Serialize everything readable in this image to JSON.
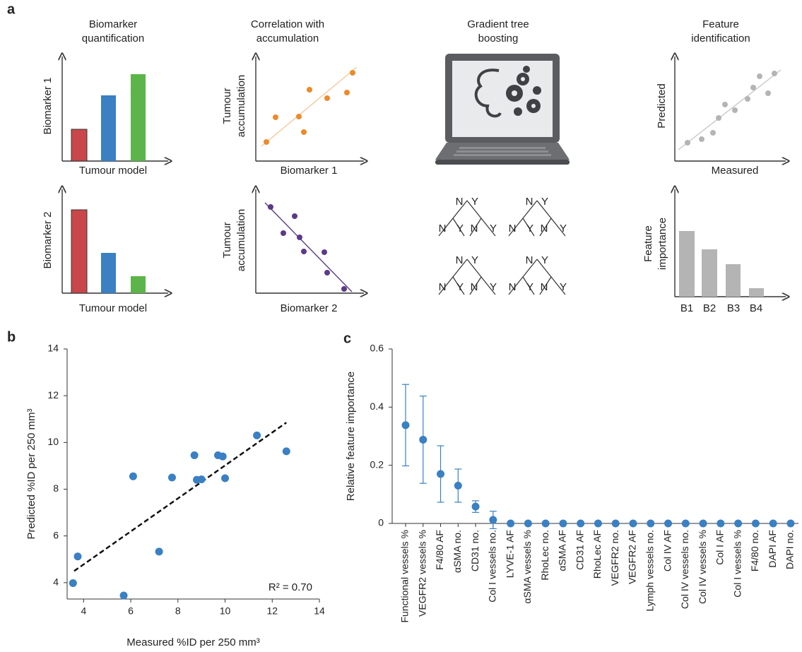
{
  "panel_labels": [
    "a",
    "b",
    "c"
  ],
  "panel_a": {
    "titles": [
      [
        "Biomarker",
        "quantification"
      ],
      [
        "Correlation with",
        "accumulation"
      ],
      [
        "Gradient tree",
        "boosting"
      ],
      [
        "Feature",
        "identification"
      ]
    ],
    "bar_rows": [
      {
        "y_label": "Biomarker 1",
        "x_label": "Tumour model"
      },
      {
        "y_label": "Biomarker 2",
        "x_label": "Tumour model"
      }
    ],
    "scatter_rows": [
      {
        "y_label": [
          "Tumour",
          "accumulation"
        ],
        "x_label": "Biomarker 1"
      },
      {
        "y_label": [
          "Tumour",
          "accumulation"
        ],
        "x_label": "Biomarker 2"
      }
    ],
    "trees": [
      [
        "N",
        "Y",
        "N",
        "Y",
        "N",
        "Y"
      ],
      [
        "N",
        "Y",
        "N",
        "Y",
        "N",
        "Y"
      ],
      [
        "N",
        "Y",
        "N",
        "Y",
        "N",
        "Y"
      ],
      [
        "N",
        "Y",
        "N",
        "Y",
        "N",
        "Y"
      ]
    ],
    "identification": {
      "y_label": "Predicted",
      "x_label": "Measured"
    },
    "importance": {
      "y_label": [
        "Feature",
        "importance"
      ],
      "categories": [
        "B1",
        "B2",
        "B3",
        "B4"
      ]
    }
  },
  "chart_data": [
    {
      "type": "scatter",
      "x_label": "Measured %ID per 250 mm³",
      "y_label": "Predicted %ID per 250 mm³",
      "x": [
        3.55,
        3.75,
        5.7,
        6.1,
        7.2,
        7.75,
        8.7,
        8.8,
        9.0,
        9.7,
        9.9,
        10.0,
        11.35,
        12.6
      ],
      "values": [
        3.98,
        5.12,
        3.45,
        8.55,
        5.33,
        8.5,
        9.45,
        8.4,
        8.42,
        9.45,
        9.4,
        8.47,
        10.3,
        9.62
      ],
      "color": "#3a80c3",
      "trendline": {
        "x": [
          3.6,
          12.6
        ],
        "values": [
          4.5,
          10.85
        ],
        "color": "#111111"
      },
      "annotation": "R² = 0.70",
      "xlim": [
        3.3,
        14
      ],
      "xticks": [
        4,
        6,
        8,
        10,
        12,
        14
      ],
      "ylim": [
        3.3,
        14
      ],
      "yticks": [
        4,
        6,
        8,
        10,
        12,
        14
      ]
    },
    {
      "type": "errorbar",
      "y_label": "Relative feature importance",
      "categories": [
        "Functional vessels %",
        "VEGFR2 vessels %",
        "F4/80 AF",
        "αSMA no.",
        "CD31 no.",
        "Col I vessels no.",
        "LYVE-1 AF",
        "αSMA vessels %",
        "RhoLec no.",
        "αSMA AF",
        "CD31 AF",
        "RhoLec AF",
        "VEGFR2 no.",
        "VEGFR2 AF",
        "Lymph vessels no.",
        "Col IV AF",
        "Col IV vessels no.",
        "Col IV vessels %",
        "Col I AF",
        "Col I vessels %",
        "F4/80 no.",
        "DAPI AF",
        "DAPI no."
      ],
      "values": [
        0.338,
        0.288,
        0.17,
        0.13,
        0.058,
        0.012,
        0,
        0,
        0,
        0,
        0,
        0,
        0,
        0,
        0,
        0,
        0,
        0,
        0,
        0,
        0,
        0,
        0
      ],
      "errors": [
        0.14,
        0.15,
        0.097,
        0.057,
        0.02,
        0.03,
        null,
        null,
        null,
        null,
        null,
        null,
        null,
        null,
        null,
        null,
        null,
        null,
        null,
        null,
        null,
        null,
        null
      ],
      "color": "#3a80c3",
      "ylim": [
        0,
        0.6
      ],
      "yticks": [
        0,
        0.2,
        0.4,
        0.6
      ]
    }
  ]
}
